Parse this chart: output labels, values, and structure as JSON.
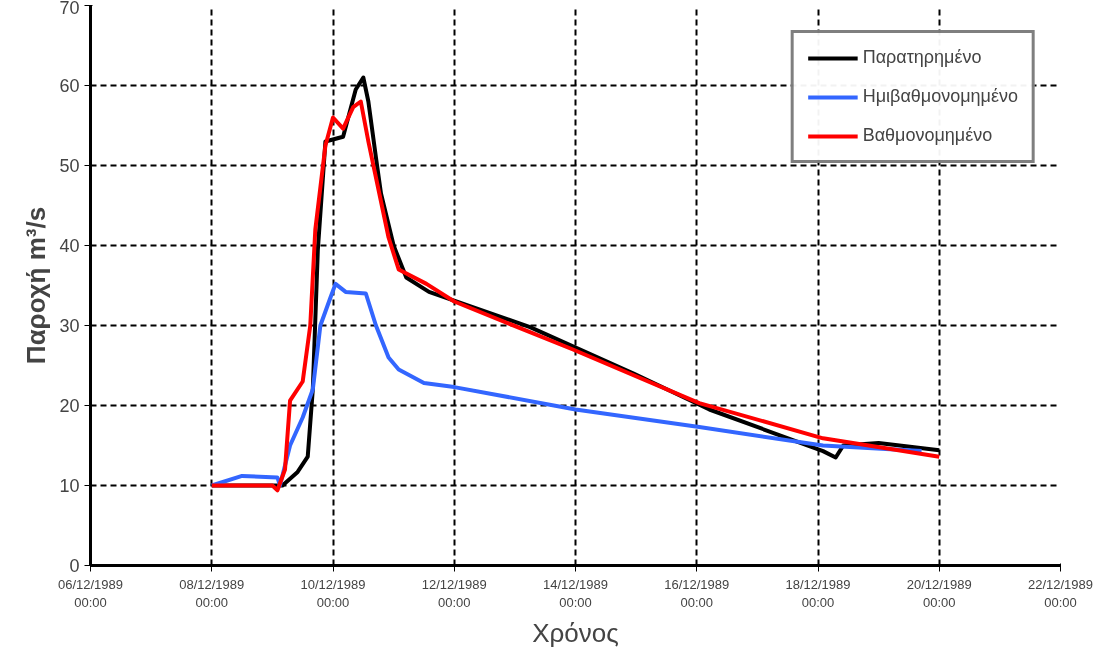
{
  "chart_data": {
    "type": "line",
    "xlabel": "Χρόνος",
    "ylabel": "Παροχή m³/s",
    "xlim": [
      "1989-12-06T00:00",
      "1989-12-22T00:00"
    ],
    "xticks": [
      {
        "value": "1989-12-06T00:00",
        "label": "06/12/1989\n00:00"
      },
      {
        "value": "1989-12-08T00:00",
        "label": "08/12/1989\n00:00"
      },
      {
        "value": "1989-12-10T00:00",
        "label": "10/12/1989\n00:00"
      },
      {
        "value": "1989-12-12T00:00",
        "label": "12/12/1989\n00:00"
      },
      {
        "value": "1989-12-14T00:00",
        "label": "14/12/1989\n00:00"
      },
      {
        "value": "1989-12-16T00:00",
        "label": "16/12/1989\n00:00"
      },
      {
        "value": "1989-12-18T00:00",
        "label": "18/12/1989\n00:00"
      },
      {
        "value": "1989-12-20T00:00",
        "label": "20/12/1989\n00:00"
      },
      {
        "value": "1989-12-22T00:00",
        "label": "22/12/1989\n00:00"
      }
    ],
    "ylim": [
      0,
      70
    ],
    "yticks": [
      0,
      10,
      20,
      30,
      40,
      50,
      60,
      70
    ],
    "grid": true,
    "legend": "top right",
    "marker": "none",
    "line_style": "solid",
    "series": [
      {
        "name": "Παρατηρημένο",
        "color": "#000000",
        "x": [
          "1989-12-08T00:00",
          "1989-12-09T04:00",
          "1989-12-09T10:00",
          "1989-12-09T14:00",
          "1989-12-09T16:00",
          "1989-12-09T18:00",
          "1989-12-09T21:00",
          "1989-12-10T04:00",
          "1989-12-10T09:00",
          "1989-12-10T12:00",
          "1989-12-10T14:00",
          "1989-12-10T17:00",
          "1989-12-10T19:00",
          "1989-12-11T00:00",
          "1989-12-11T05:00",
          "1989-12-11T14:00",
          "1989-12-13T06:00",
          "1989-12-14T23:00",
          "1989-12-16T05:00",
          "1989-12-18T02:00",
          "1989-12-18T07:00",
          "1989-12-18T10:00",
          "1989-12-19T00:00",
          "1989-12-20T00:00"
        ],
        "values": [
          10,
          10,
          11.7,
          13.6,
          22,
          39.5,
          53,
          53.6,
          59.5,
          61,
          58,
          51,
          46.5,
          40,
          36,
          34.2,
          29.8,
          24,
          19.5,
          14.3,
          13.5,
          15,
          15.3,
          14.4
        ]
      },
      {
        "name": "Ημιβαθμονομημένο",
        "color": "#3366ff",
        "x": [
          "1989-12-08T00:00",
          "1989-12-08T12:00",
          "1989-12-09T02:00",
          "1989-12-09T03:00",
          "1989-12-09T07:00",
          "1989-12-09T12:00",
          "1989-12-09T16:00",
          "1989-12-09T19:00",
          "1989-12-09T23:00",
          "1989-12-10T01:00",
          "1989-12-10T05:00",
          "1989-12-10T13:00",
          "1989-12-10T17:00",
          "1989-12-10T22:00",
          "1989-12-11T02:00",
          "1989-12-11T12:00",
          "1989-12-12T00:00",
          "1989-12-14T00:00",
          "1989-12-16T01:00",
          "1989-12-18T02:00",
          "1989-12-19T17:00"
        ],
        "values": [
          10,
          11.2,
          11,
          10,
          15,
          18.5,
          22,
          30,
          33.5,
          35.2,
          34.2,
          34,
          30,
          26,
          24.5,
          22.8,
          22.3,
          19.5,
          17.3,
          15,
          14.3
        ]
      },
      {
        "name": "Βαθμονομημένο",
        "color": "#ff0000",
        "x": [
          "1989-12-08T00:00",
          "1989-12-09T00:00",
          "1989-12-09T02:00",
          "1989-12-09T05:00",
          "1989-12-09T07:00",
          "1989-12-09T12:00",
          "1989-12-09T15:00",
          "1989-12-09T17:00",
          "1989-12-09T21:00",
          "1989-12-10T00:00",
          "1989-12-10T04:00",
          "1989-12-10T08:00",
          "1989-12-10T11:00",
          "1989-12-10T14:00",
          "1989-12-10T18:00",
          "1989-12-10T22:00",
          "1989-12-11T02:00",
          "1989-12-11T13:00",
          "1989-12-12T00:00",
          "1989-12-13T23:00",
          "1989-12-16T01:00",
          "1989-12-18T02:00",
          "1989-12-20T00:00"
        ],
        "values": [
          10,
          10,
          9.4,
          12,
          20.6,
          23,
          30,
          42,
          52.5,
          56,
          54.6,
          57.3,
          58,
          53,
          47,
          41,
          37,
          35.2,
          33,
          27,
          20.3,
          15.9,
          13.6
        ]
      }
    ]
  }
}
